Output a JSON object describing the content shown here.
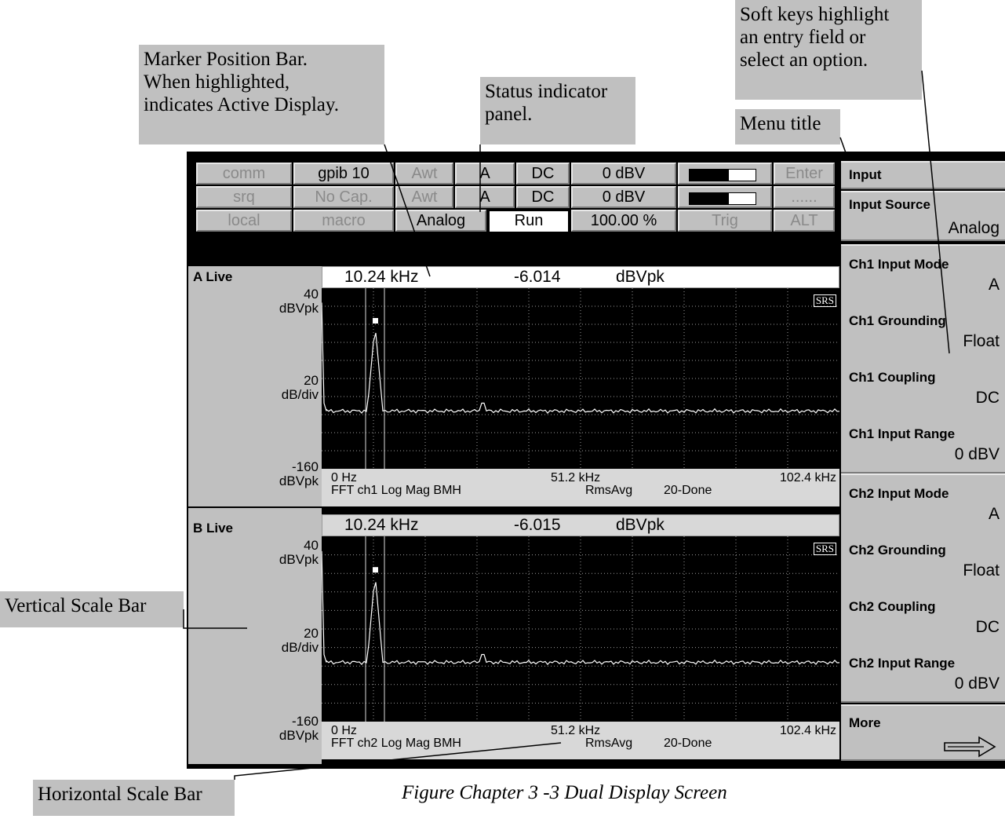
{
  "callouts": {
    "marker_position_bar": "Marker Position Bar.\nWhen highlighted,\nindicates Active Display.",
    "status_indicator_panel": "Status indicator\npanel.",
    "soft_keys": "Soft keys highlight\nan entry field or\nselect an option.",
    "menu_title": "Menu title",
    "vertical_scale_bar": "Vertical Scale Bar",
    "horizontal_scale_bar": "Horizontal Scale Bar"
  },
  "caption": "Figure Chapter 3 -3 Dual Display Screen",
  "status_panel": {
    "row1": [
      "comm",
      "gpib 10",
      "Awt",
      "A",
      "DC",
      "0 dBV",
      "",
      "Enter"
    ],
    "row2": [
      "srq",
      "No Cap.",
      "Awt",
      "A",
      "DC",
      "0 dBV",
      "",
      "......"
    ],
    "row3": [
      "local",
      "macro",
      "Analog",
      "Run",
      "100.00 %",
      "Trig",
      "ALT"
    ],
    "meter_levels": [
      0.6,
      0.6
    ]
  },
  "display_a": {
    "title": "A Live",
    "top_value": "40",
    "top_unit": "dBVpk",
    "scale_value": "20",
    "scale_unit": "dB/div",
    "bottom_value": "-160",
    "bottom_unit": "dBVpk",
    "marker_freq": "10.24 kHz",
    "marker_value": "-6.014",
    "marker_unit": "dBVpk",
    "logo": "SRS",
    "x_start": "0 Hz",
    "x_mid": "51.2 kHz",
    "x_end": "102.4 kHz",
    "meas_info": "FFT ch1 Log Mag BMH",
    "avg_info": "RmsAvg",
    "avg_status": "20-Done"
  },
  "display_b": {
    "title": "B Live",
    "top_value": "40",
    "top_unit": "dBVpk",
    "scale_value": "20",
    "scale_unit": "dB/div",
    "bottom_value": "-160",
    "bottom_unit": "dBVpk",
    "marker_freq": "10.24 kHz",
    "marker_value": "-6.015",
    "marker_unit": "dBVpk",
    "logo": "SRS",
    "x_start": "0 Hz",
    "x_mid": "51.2 kHz",
    "x_end": "102.4 kHz",
    "meas_info": "FFT ch2 Log Mag BMH",
    "avg_info": "RmsAvg",
    "avg_status": "20-Done"
  },
  "menu": {
    "title": "Input",
    "softkeys": [
      {
        "label": "Input Source",
        "value": "Analog"
      },
      {
        "label": "Ch1 Input Mode",
        "value": "A"
      },
      {
        "label": "Ch1 Grounding",
        "value": "Float"
      },
      {
        "label": "Ch1 Coupling",
        "value": "DC"
      },
      {
        "label": "Ch1 Input Range",
        "value": "0 dBV"
      },
      {
        "label": "Ch2 Input Mode",
        "value": "A"
      },
      {
        "label": "Ch2 Grounding",
        "value": "Float"
      },
      {
        "label": "Ch2 Coupling",
        "value": "DC"
      },
      {
        "label": "Ch2 Input Range",
        "value": "0 dBV"
      },
      {
        "label": "More",
        "value": ""
      }
    ]
  },
  "colors": {
    "panel_gray": "#c0c0c0",
    "plot_background": "#000000",
    "trace": "#ffffff",
    "grid": "#9a9a9a"
  }
}
